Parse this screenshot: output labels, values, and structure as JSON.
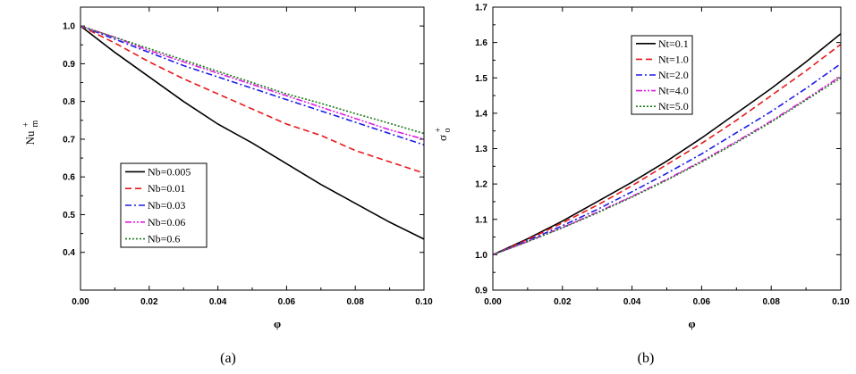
{
  "chart_data": [
    {
      "type": "line",
      "caption": "(a)",
      "xlabel": "φ",
      "ylabel_base": "Nu",
      "ylabel_sup": "+",
      "ylabel_sub": "m",
      "xlim": [
        0.0,
        0.1
      ],
      "ylim": [
        0.3,
        1.05
      ],
      "xticks": [
        "0.00",
        "0.02",
        "0.04",
        "0.06",
        "0.08",
        "0.10"
      ],
      "yticks": [
        "0.4",
        "0.5",
        "0.6",
        "0.7",
        "0.8",
        "0.9",
        "1.0"
      ],
      "legend_position": "bottom-left",
      "x": [
        0.0,
        0.01,
        0.02,
        0.03,
        0.04,
        0.05,
        0.06,
        0.07,
        0.08,
        0.09,
        0.1
      ],
      "series": [
        {
          "name": "Nb=0.005",
          "color": "#000000",
          "dash": "solid",
          "values": [
            1.0,
            0.93,
            0.865,
            0.8,
            0.74,
            0.69,
            0.635,
            0.58,
            0.53,
            0.48,
            0.435
          ]
        },
        {
          "name": "Nb=0.01",
          "color": "#e8191c",
          "dash": "dash",
          "values": [
            1.0,
            0.955,
            0.905,
            0.86,
            0.82,
            0.78,
            0.74,
            0.71,
            0.67,
            0.64,
            0.61
          ]
        },
        {
          "name": "Nb=0.03",
          "color": "#1c1ce8",
          "dash": "dashdot",
          "values": [
            1.0,
            0.965,
            0.93,
            0.895,
            0.865,
            0.835,
            0.805,
            0.775,
            0.745,
            0.715,
            0.685
          ]
        },
        {
          "name": "Nb=0.06",
          "color": "#e01ce0",
          "dash": "dashdotdot",
          "values": [
            1.0,
            0.97,
            0.935,
            0.905,
            0.875,
            0.845,
            0.815,
            0.785,
            0.755,
            0.725,
            0.7
          ]
        },
        {
          "name": "Nb=0.6",
          "color": "#1a7a1a",
          "dash": "dot",
          "values": [
            1.0,
            0.97,
            0.94,
            0.91,
            0.88,
            0.85,
            0.82,
            0.795,
            0.768,
            0.742,
            0.715
          ]
        }
      ]
    },
    {
      "type": "line",
      "caption": "(b)",
      "xlabel": "φ",
      "ylabel_base": "σ",
      "ylabel_sup": "+",
      "ylabel_sub": "o",
      "xlim": [
        0.0,
        0.1
      ],
      "ylim": [
        0.9,
        1.7
      ],
      "xticks": [
        "0.00",
        "0.02",
        "0.04",
        "0.06",
        "0.08",
        "0.10"
      ],
      "yticks": [
        "0.9",
        "1.0",
        "1.1",
        "1.2",
        "1.3",
        "1.4",
        "1.5",
        "1.6",
        "1.7"
      ],
      "legend_position": "top-center",
      "x": [
        0.0,
        0.01,
        0.02,
        0.03,
        0.04,
        0.05,
        0.06,
        0.07,
        0.08,
        0.09,
        0.1
      ],
      "series": [
        {
          "name": "Nt=0.1",
          "color": "#000000",
          "dash": "solid",
          "values": [
            1.0,
            1.045,
            1.095,
            1.15,
            1.205,
            1.265,
            1.33,
            1.4,
            1.47,
            1.545,
            1.625
          ]
        },
        {
          "name": "Nt=1.0",
          "color": "#e8191c",
          "dash": "dash",
          "values": [
            1.0,
            1.043,
            1.09,
            1.14,
            1.195,
            1.255,
            1.315,
            1.38,
            1.45,
            1.52,
            1.595
          ]
        },
        {
          "name": "Nt=2.0",
          "color": "#1c1ce8",
          "dash": "dashdot",
          "values": [
            1.0,
            1.04,
            1.082,
            1.128,
            1.178,
            1.23,
            1.285,
            1.345,
            1.405,
            1.47,
            1.54
          ]
        },
        {
          "name": "Nt=4.0",
          "color": "#e01ce0",
          "dash": "dashdotdot",
          "values": [
            1.0,
            1.037,
            1.077,
            1.12,
            1.165,
            1.213,
            1.265,
            1.32,
            1.378,
            1.44,
            1.505
          ]
        },
        {
          "name": "Nt=5.0",
          "color": "#1a7a1a",
          "dash": "dot",
          "values": [
            1.0,
            1.037,
            1.076,
            1.118,
            1.163,
            1.211,
            1.262,
            1.317,
            1.375,
            1.437,
            1.5
          ]
        }
      ]
    }
  ]
}
